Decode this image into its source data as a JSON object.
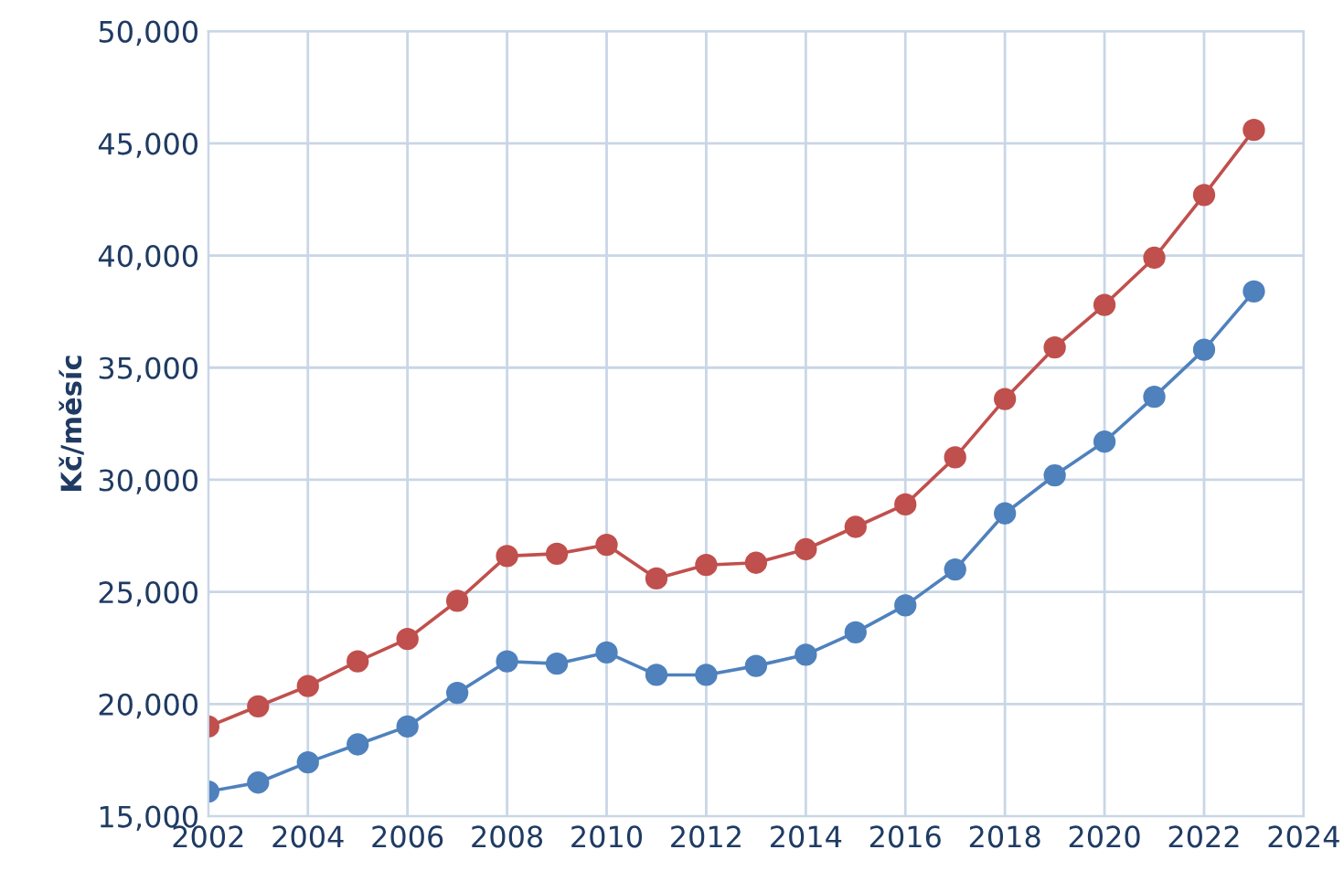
{
  "chart_data": {
    "type": "line",
    "ylabel": "Kč/měsíc",
    "x": [
      2002,
      2003,
      2004,
      2005,
      2006,
      2007,
      2008,
      2009,
      2010,
      2011,
      2012,
      2013,
      2014,
      2015,
      2016,
      2017,
      2018,
      2019,
      2020,
      2021,
      2022,
      2023
    ],
    "series": [
      {
        "color": "#c0504d",
        "values": [
          19000,
          19900,
          20800,
          21900,
          22900,
          24600,
          26600,
          26700,
          27100,
          25600,
          26200,
          26300,
          26900,
          27900,
          28900,
          31000,
          33600,
          35900,
          37800,
          39900,
          42700,
          45600
        ]
      },
      {
        "color": "#4f81bd",
        "values": [
          16100,
          16500,
          17400,
          18200,
          19000,
          20500,
          21900,
          21800,
          22300,
          21300,
          21300,
          21700,
          22200,
          23200,
          24400,
          26000,
          28500,
          30200,
          31700,
          33700,
          35800,
          38400
        ]
      }
    ],
    "xlim": [
      2002,
      2024
    ],
    "xticks": [
      2002,
      2004,
      2006,
      2008,
      2010,
      2012,
      2014,
      2016,
      2018,
      2020,
      2022,
      2024
    ],
    "ylim": [
      15000,
      50000
    ],
    "yticks": [
      {
        "value": 15000,
        "label": "15,000"
      },
      {
        "value": 20000,
        "label": "20,000"
      },
      {
        "value": 25000,
        "label": "25,000"
      },
      {
        "value": 30000,
        "label": "30,000"
      },
      {
        "value": 35000,
        "label": "35,000"
      },
      {
        "value": 40000,
        "label": "40,000"
      },
      {
        "value": 45000,
        "label": "45,000"
      },
      {
        "value": 50000,
        "label": "50,000"
      }
    ],
    "grid": true,
    "marker": "circle",
    "line_style": "solid",
    "legend": false
  }
}
